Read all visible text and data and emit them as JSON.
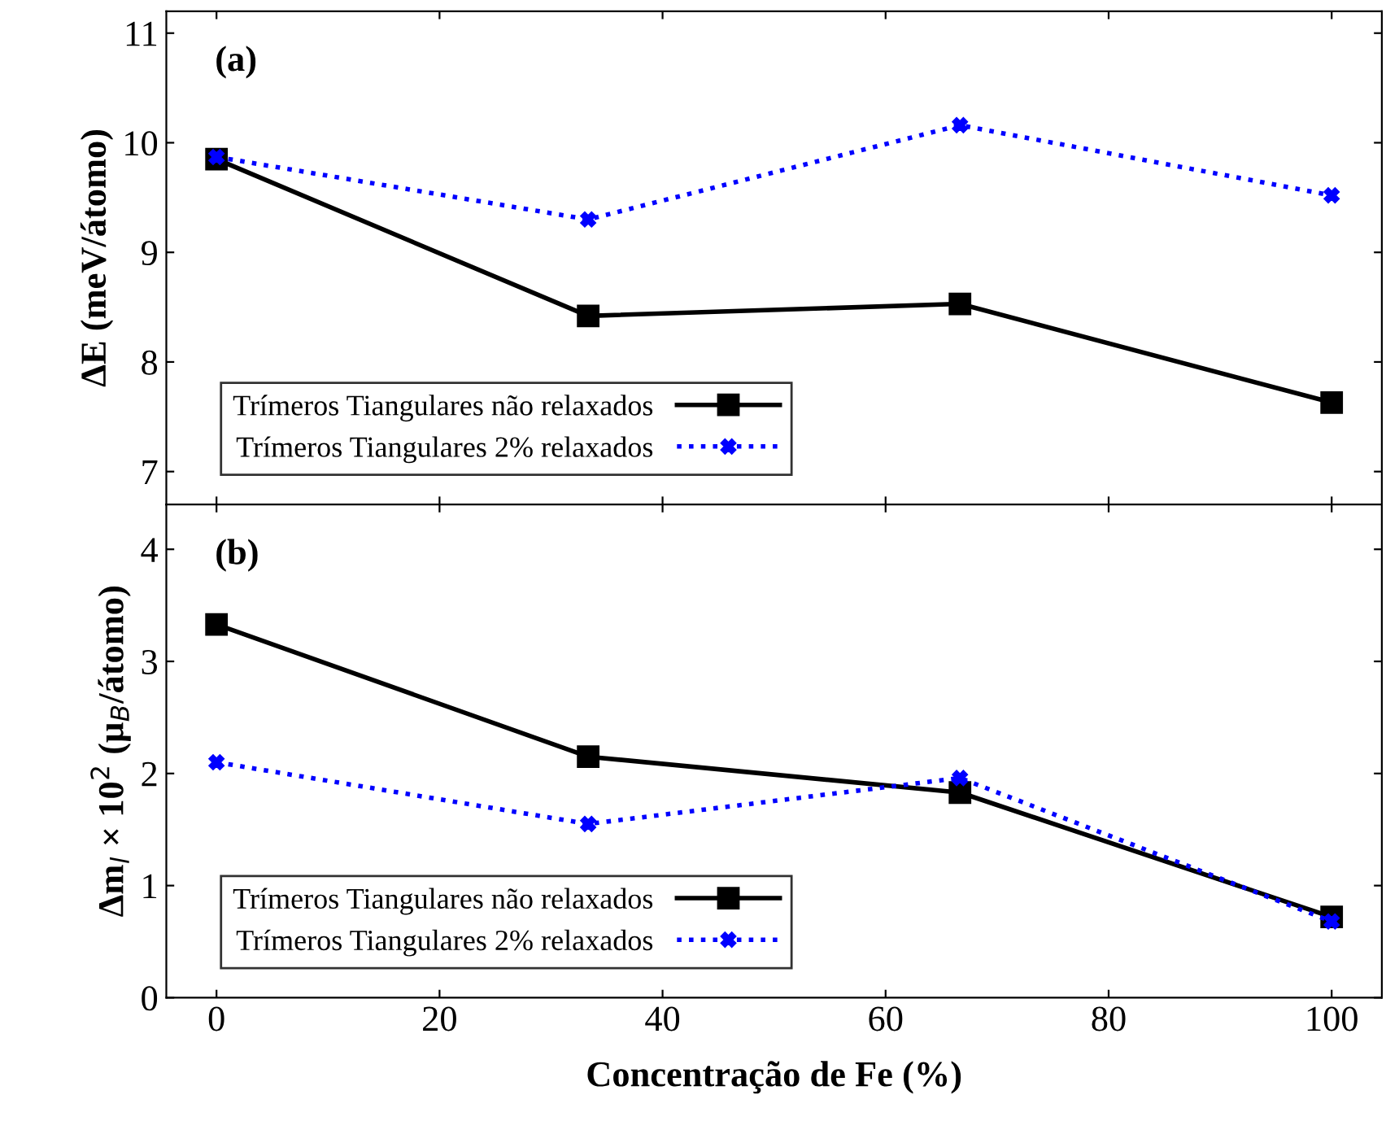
{
  "chart_data": [
    {
      "type": "line",
      "ylabel": "ΔE (meV/átomo)",
      "annotations": [
        "(a)"
      ],
      "xlim": [
        -4.5,
        104.5
      ],
      "xticks": [
        0,
        20,
        40,
        60,
        80,
        100
      ],
      "ylim": [
        6.7,
        11.2
      ],
      "yticks": [
        7,
        8,
        9,
        10,
        11
      ],
      "tick_labels": "y",
      "legend": "bottom left",
      "grid": false,
      "x": [
        0,
        33.33,
        66.67,
        100
      ],
      "series": [
        {
          "name": "Trímeros Tiangulares não relaxados",
          "color": "#000000",
          "marker": "square",
          "line_style": "solid",
          "values": [
            9.85,
            8.42,
            8.53,
            7.63
          ]
        },
        {
          "name": "Trímeros Tiangulares 2% relaxados",
          "color": "#0000ff",
          "marker": "cross",
          "line_style": "dotted",
          "values": [
            9.87,
            9.3,
            10.16,
            9.52
          ]
        }
      ]
    },
    {
      "type": "line",
      "ylabel": "Δm$_{l}$ × 10$^{2}$ (μ$_{B}$/átomo)",
      "xlabel": "Concentração de Fe (%)",
      "annotations": [
        "(b)"
      ],
      "xlim": [
        -4.5,
        104.5
      ],
      "xticks": [
        0,
        20,
        40,
        60,
        80,
        100
      ],
      "ylim": [
        0,
        4.4
      ],
      "yticks": [
        0,
        1,
        2,
        3,
        4
      ],
      "legend": "bottom left",
      "grid": false,
      "x": [
        0,
        33.33,
        66.67,
        100
      ],
      "series": [
        {
          "name": "Trímeros Tiangulares não relaxados",
          "color": "#000000",
          "marker": "square",
          "line_style": "solid",
          "values": [
            3.33,
            2.15,
            1.83,
            0.72
          ]
        },
        {
          "name": "Trímeros Tiangulares 2% relaxados",
          "color": "#0000ff",
          "marker": "cross",
          "line_style": "dotted",
          "values": [
            2.1,
            1.55,
            1.96,
            0.68
          ]
        }
      ]
    }
  ]
}
